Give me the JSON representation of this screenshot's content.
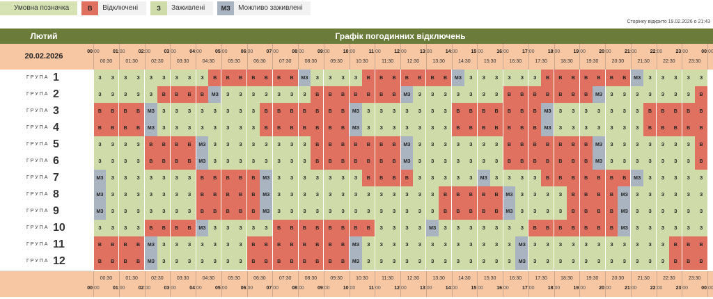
{
  "legend": {
    "label": "Умовна позначка",
    "items": [
      {
        "code": "В",
        "text": "Відключені",
        "color": "#e0705f"
      },
      {
        "code": "З",
        "text": "Заживлені",
        "color": "#cfdca9"
      },
      {
        "code": "МЗ",
        "text": "Можливо заживлені",
        "color": "#aab4c0"
      }
    ]
  },
  "opened_text": "Сторінку відкрито 19.02.2026 о 21:43",
  "header": {
    "month": "Лютий",
    "title": "Графік погодинних відключень"
  },
  "date": "20.02.2026",
  "group_word": "ГРУПА",
  "groups": [
    {
      "num": "1",
      "slots": "ZZZZZZZZZVVVVVVVMZZZZVVVVVVVMZZZZZZVVVVVVVMZZZZZZZVVVV"
    },
    {
      "num": "2",
      "slots": "ZZZZZVVVVMZZZZZZZVVVVVVVMZZZZZZZVVVVVVVMZZZZZZZVVVVMZZZ"
    },
    {
      "num": "3",
      "slots": "VVVVMZZZZZZZZVVVVVVVMZZZZZZZVVVVVVVMZZZZZZZVVVVVVVMZVVV"
    },
    {
      "num": "4",
      "slots": "VVVVMZZZZZZZZVVVVVVVMZZZZZZZVVVVVVVMZZZZZZZVVVVVVVMZVVV"
    },
    {
      "num": "5",
      "slots": "ZZZZVVVVMZZZZZZZZVVVVVVVMZZZZZZZVVVVVVVMZZZZZZZVVVVMZZZ"
    },
    {
      "num": "6",
      "slots": "ZZZZVVVVMZZZZZZZZVVVVVVVMZZZZZZZVVVVVVVMZZZZZZZVVVVMZZZ"
    },
    {
      "num": "7",
      "slots": "MZZZZZZZVVVVVMZZZZZZZVVVVZZZZZMZZZZVVVVVVVMZZZZZZZVVVV"
    },
    {
      "num": "8",
      "slots": "MZZZZZZZVVVVVMZZZZZZZZZZZZZVVVVVMZZZZVVVVMZZZZZZZVVVVVV"
    },
    {
      "num": "9",
      "slots": "MZZZZZZZVVVVVMZZZZZZZZZZZZZVVVVVMZZZZVVVVMZZZZZZZVVVVVV"
    },
    {
      "num": "10",
      "slots": "ZZZZVVVVMZZZZZVVVVVVVVZZZZMZZZZZZZVVVVVVVMZZZZZZZVVVVMZ"
    },
    {
      "num": "11",
      "slots": "VVVVMZZZZZZZVVVVVVVVMZZZZZZZZZZZZMZZZZZZZZZZZVVVVVVVMVV"
    },
    {
      "num": "12",
      "slots": "VVVVMZZZZZZZVVVVVVVVMZZZZZZZZZZZZMZZZZZZZZZZZVVVVVVVMZZ"
    }
  ],
  "codes": {
    "Z": "З",
    "V": "В",
    "M": "МЗ"
  },
  "hour_labels": [
    "00",
    "01",
    "02",
    "03",
    "04",
    "05",
    "06",
    "07",
    "08",
    "09",
    "10",
    "11",
    "12",
    "13",
    "14",
    "15",
    "16",
    "17",
    "18",
    "19",
    "20",
    "21",
    "22",
    "23",
    "00"
  ],
  "half_labels": [
    "00:30",
    "01:30",
    "02:30",
    "03:30",
    "04:30",
    "05:30",
    "06:30",
    "07:30",
    "08:30",
    "09:30",
    "10:30",
    "11:30",
    "12:30",
    "13:30",
    "14:30",
    "15:30",
    "16:30",
    "17:30",
    "18:30",
    "19:30",
    "20:30",
    "21:30",
    "22:30",
    "23:30"
  ]
}
